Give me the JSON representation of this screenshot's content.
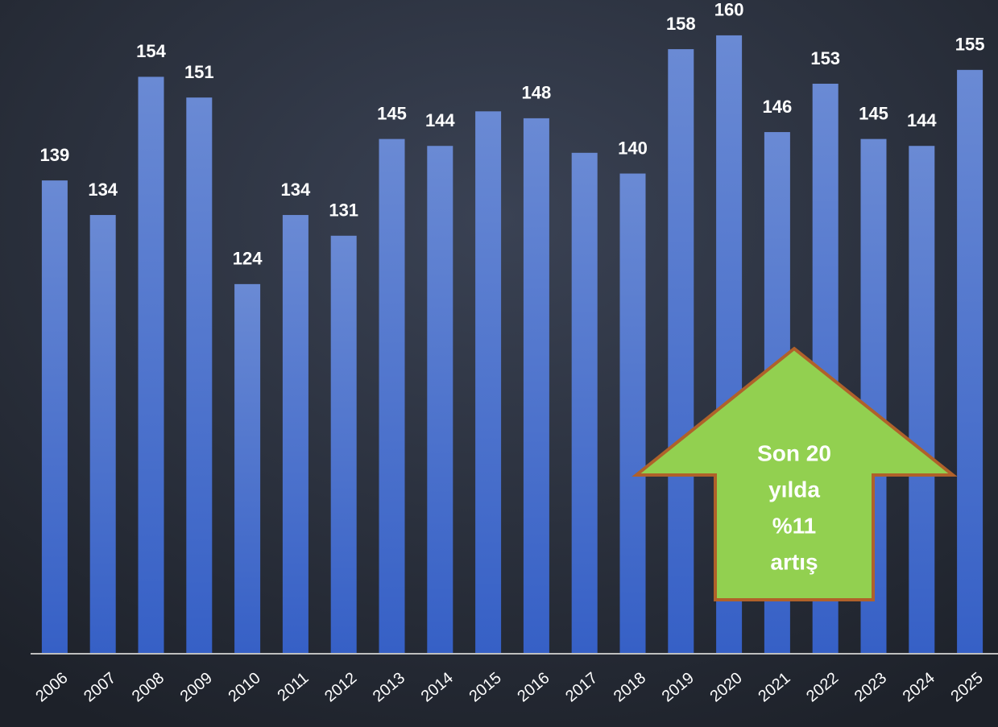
{
  "chart_data": {
    "type": "bar",
    "categories": [
      "2006",
      "2007",
      "2008",
      "2009",
      "2010",
      "2011",
      "2012",
      "2013",
      "2014",
      "2015",
      "2016",
      "2017",
      "2018",
      "2019",
      "2020",
      "2021",
      "2022",
      "2023",
      "2024",
      "2025"
    ],
    "values": [
      139,
      134,
      154,
      151,
      124,
      134,
      131,
      145,
      144,
      149,
      148,
      143,
      140,
      158,
      160,
      146,
      153,
      145,
      144,
      155
    ],
    "value_labels": [
      139,
      134,
      154,
      151,
      124,
      134,
      131,
      145,
      144,
      null,
      148,
      null,
      140,
      158,
      160,
      146,
      153,
      145,
      144,
      155
    ],
    "color": "#4a72cf",
    "ylim": [
      70.5,
      165
    ],
    "annotation": [
      "Son 20",
      "yılda",
      "%11",
      "artış"
    ]
  }
}
